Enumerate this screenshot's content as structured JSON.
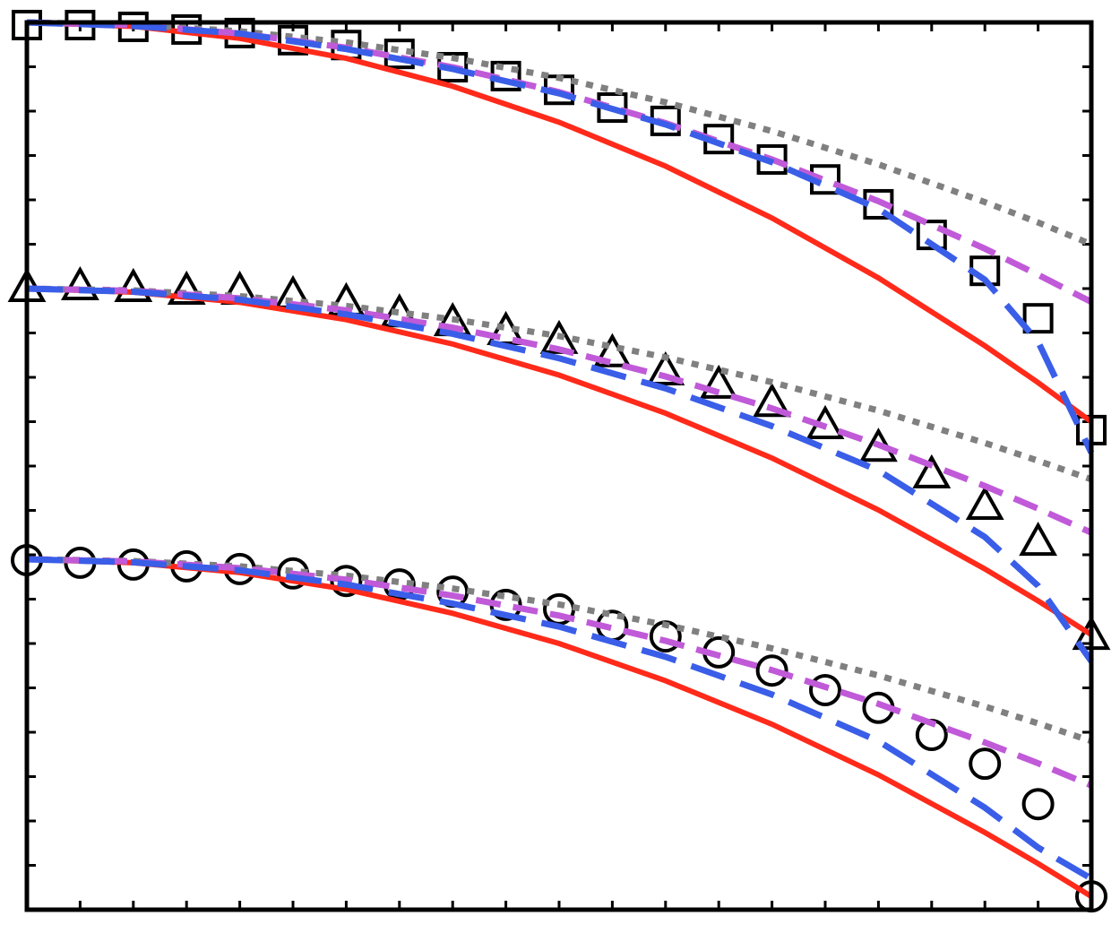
{
  "chart_data": {
    "type": "line",
    "xlim": [
      0,
      20
    ],
    "ylim": [
      0,
      20
    ],
    "xticks": [
      0,
      1,
      2,
      3,
      4,
      5,
      6,
      7,
      8,
      9,
      10,
      11,
      12,
      13,
      14,
      15,
      16,
      17,
      18,
      19,
      20
    ],
    "yticks": [
      0,
      1,
      2,
      3,
      4,
      5,
      6,
      7,
      8,
      9,
      10,
      11,
      12,
      13,
      14,
      15,
      16,
      17,
      18,
      19,
      20
    ],
    "series": [
      {
        "marker": "square",
        "color": "#000000",
        "x": [
          0,
          1,
          2,
          3,
          4,
          5,
          6,
          7,
          8,
          9,
          10,
          11,
          12,
          13,
          14,
          15,
          16,
          17,
          18,
          19,
          20
        ],
        "values": [
          19.94,
          19.94,
          19.9,
          19.84,
          19.76,
          19.6,
          19.49,
          19.29,
          18.99,
          18.79,
          18.48,
          18.08,
          17.78,
          17.37,
          16.91,
          16.46,
          15.9,
          15.21,
          14.4,
          13.33,
          10.81
        ]
      },
      {
        "marker": "triangle",
        "color": "#000000",
        "x": [
          0,
          1,
          2,
          3,
          4,
          5,
          6,
          7,
          8,
          9,
          10,
          11,
          12,
          13,
          14,
          15,
          16,
          17,
          18,
          19,
          20
        ],
        "values": [
          14.0,
          14.04,
          14.0,
          13.94,
          13.94,
          13.84,
          13.68,
          13.43,
          13.23,
          13.03,
          12.83,
          12.53,
          12.12,
          11.82,
          11.41,
          10.91,
          10.4,
          9.8,
          9.09,
          8.28,
          6.16
        ]
      },
      {
        "marker": "circle",
        "color": "#000000",
        "x": [
          0,
          1,
          2,
          3,
          4,
          5,
          6,
          7,
          8,
          9,
          10,
          11,
          12,
          13,
          14,
          15,
          16,
          17,
          18,
          19,
          20
        ],
        "values": [
          7.88,
          7.82,
          7.78,
          7.74,
          7.68,
          7.58,
          7.41,
          7.33,
          7.17,
          6.87,
          6.77,
          6.4,
          6.16,
          5.8,
          5.39,
          4.95,
          4.55,
          3.94,
          3.29,
          2.38,
          0.3
        ]
      },
      {
        "style": "solid",
        "color": "#ff2a1a",
        "x": [
          0,
          2,
          4,
          6,
          8,
          10,
          12,
          14,
          16,
          18,
          19,
          20
        ],
        "values": [
          20,
          19.91,
          19.64,
          19.19,
          18.56,
          17.75,
          16.76,
          15.59,
          14.24,
          12.71,
          11.88,
          11.0
        ]
      },
      {
        "style": "solid",
        "color": "#ff2a1a",
        "x": [
          0,
          2,
          4,
          6,
          8,
          10,
          12,
          14,
          16,
          18,
          19,
          20
        ],
        "values": [
          14,
          13.92,
          13.69,
          13.3,
          12.75,
          12.05,
          11.19,
          10.18,
          9.01,
          7.68,
          6.96,
          6.2
        ]
      },
      {
        "style": "solid",
        "color": "#ff2a1a",
        "x": [
          0,
          2,
          4,
          6,
          8,
          10,
          12,
          14,
          16,
          18,
          19,
          20
        ],
        "values": [
          7.9,
          7.82,
          7.6,
          7.22,
          6.68,
          6.0,
          5.16,
          4.18,
          3.04,
          1.74,
          1.04,
          0.3
        ]
      },
      {
        "style": "dotted",
        "color": "#808080",
        "x": [
          0,
          2,
          4,
          6,
          8,
          10,
          12,
          14,
          16,
          18,
          19,
          20
        ],
        "values": [
          20,
          19.95,
          19.8,
          19.55,
          19.2,
          18.75,
          18.2,
          17.55,
          16.8,
          15.95,
          15.49,
          15.0
        ]
      },
      {
        "style": "dotted",
        "color": "#808080",
        "x": [
          0,
          2,
          4,
          6,
          8,
          10,
          12,
          14,
          16,
          18,
          19,
          20
        ],
        "values": [
          14,
          13.96,
          13.83,
          13.61,
          13.31,
          12.93,
          12.45,
          11.89,
          11.25,
          10.52,
          10.12,
          9.7
        ]
      },
      {
        "style": "dotted",
        "color": "#808080",
        "x": [
          0,
          2,
          4,
          6,
          8,
          10,
          12,
          14,
          16,
          18,
          19,
          20
        ],
        "values": [
          7.9,
          7.86,
          7.74,
          7.53,
          7.24,
          6.88,
          6.42,
          5.89,
          5.28,
          4.58,
          4.2,
          3.8
        ]
      },
      {
        "style": "dashed",
        "color": "#c05ad8",
        "x": [
          0,
          2,
          4,
          6,
          8,
          10,
          12,
          14,
          16,
          18,
          19,
          20
        ],
        "values": [
          20,
          19.94,
          19.75,
          19.43,
          18.99,
          18.43,
          17.73,
          16.91,
          15.97,
          14.9,
          14.31,
          13.7
        ]
      },
      {
        "style": "dashed",
        "color": "#c05ad8",
        "x": [
          0,
          2,
          4,
          6,
          8,
          10,
          12,
          14,
          16,
          18,
          19,
          20
        ],
        "values": [
          14,
          13.95,
          13.78,
          13.51,
          13.12,
          12.63,
          12.02,
          11.3,
          10.48,
          9.55,
          9.04,
          8.5
        ]
      },
      {
        "style": "dashed",
        "color": "#c05ad8",
        "x": [
          0,
          2,
          4,
          6,
          8,
          10,
          12,
          14,
          16,
          18,
          19,
          20
        ],
        "values": [
          7.9,
          7.85,
          7.7,
          7.44,
          7.08,
          6.63,
          6.06,
          5.4,
          4.64,
          3.77,
          3.3,
          2.8
        ]
      },
      {
        "style": "longdash",
        "color": "#3a5ee8",
        "x": [
          0,
          2,
          4,
          6,
          8,
          10,
          12,
          14,
          16,
          18,
          19,
          20
        ],
        "values": [
          20,
          19.92,
          19.75,
          19.4,
          18.95,
          18.4,
          17.7,
          16.85,
          15.8,
          14.2,
          12.8,
          10.3
        ]
      },
      {
        "style": "longdash",
        "color": "#3a5ee8",
        "x": [
          0,
          2,
          4,
          6,
          8,
          10,
          12,
          14,
          16,
          18,
          19,
          20
        ],
        "values": [
          14,
          13.93,
          13.75,
          13.42,
          12.98,
          12.43,
          11.75,
          10.9,
          9.9,
          8.4,
          7.3,
          5.6
        ]
      },
      {
        "style": "longdash",
        "color": "#3a5ee8",
        "x": [
          0,
          2,
          4,
          6,
          8,
          10,
          12,
          14,
          16,
          18,
          19,
          20
        ],
        "values": [
          7.9,
          7.83,
          7.65,
          7.33,
          6.9,
          6.38,
          5.7,
          4.85,
          3.8,
          2.3,
          1.4,
          0.7
        ]
      }
    ]
  }
}
